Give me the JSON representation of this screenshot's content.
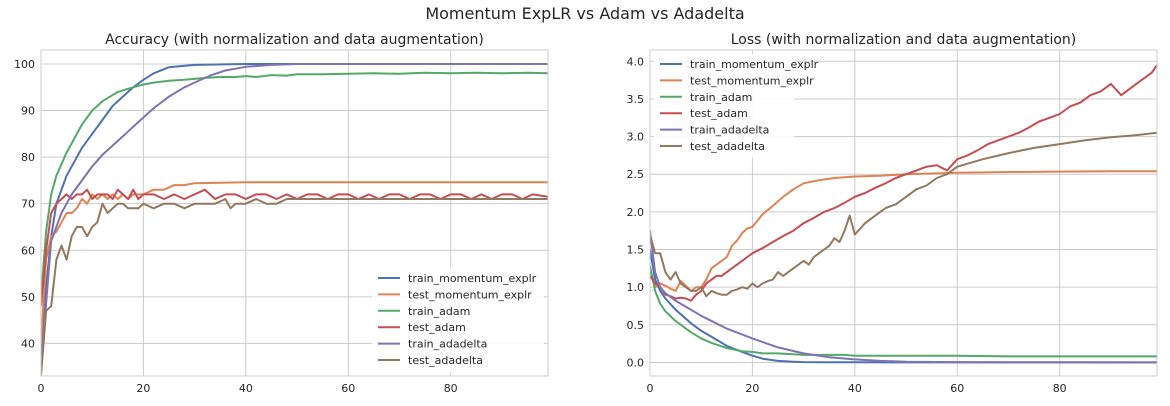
{
  "figure": {
    "suptitle": "Momentum ExpLR vs Adam vs Adadelta"
  },
  "chart_data": [
    {
      "type": "line",
      "title": "Accuracy (with normalization and data augmentation)",
      "xlabel": "",
      "ylabel": "",
      "xlim": [
        0,
        99
      ],
      "ylim": [
        33,
        103
      ],
      "xticks": [
        0,
        20,
        40,
        60,
        80
      ],
      "yticks": [
        40,
        50,
        60,
        70,
        80,
        90,
        100
      ],
      "grid": true,
      "legend_position": "lower-right",
      "series": [
        {
          "name": "train_momentum_explr",
          "color": "#4c72b0",
          "x": [
            0,
            1,
            2,
            3,
            5,
            8,
            10,
            12,
            14,
            16,
            18,
            20,
            22,
            25,
            30,
            40,
            60,
            99
          ],
          "y": [
            36,
            52,
            63,
            70,
            76,
            82,
            85,
            88,
            91,
            93,
            95,
            96.6,
            98,
            99.3,
            99.8,
            100,
            100,
            100
          ]
        },
        {
          "name": "test_momentum_explr",
          "color": "#dd8452",
          "x": [
            0,
            1,
            2,
            3,
            4,
            5,
            6,
            7,
            8,
            9,
            10,
            11,
            12,
            13,
            14,
            15,
            16,
            17,
            18,
            19,
            20,
            22,
            24,
            26,
            28,
            30,
            35,
            40,
            50,
            60,
            80,
            99
          ],
          "y": [
            40,
            58,
            63,
            64,
            66,
            68,
            68,
            69,
            71,
            70,
            72,
            71,
            72,
            71,
            72,
            71,
            72,
            71,
            72,
            72,
            72,
            73,
            73,
            74,
            74,
            74.4,
            74.5,
            74.6,
            74.6,
            74.6,
            74.6,
            74.6
          ]
        },
        {
          "name": "train_adam",
          "color": "#55a868",
          "x": [
            0,
            1,
            2,
            3,
            5,
            8,
            10,
            12,
            15,
            18,
            20,
            22,
            25,
            28,
            30,
            32,
            35,
            38,
            40,
            42,
            45,
            48,
            50,
            55,
            60,
            65,
            70,
            75,
            80,
            85,
            90,
            95,
            99
          ],
          "y": [
            50,
            64,
            72,
            76,
            81,
            87,
            90,
            92,
            94,
            95,
            95.6,
            96,
            96.4,
            96.6,
            96.8,
            97,
            97.2,
            97.2,
            97.4,
            97.2,
            97.6,
            97.5,
            97.8,
            97.8,
            97.9,
            98,
            97.9,
            98.1,
            98,
            98.1,
            98,
            98.1,
            98
          ]
        },
        {
          "name": "test_adam",
          "color": "#c44e52",
          "x": [
            0,
            1,
            2,
            3,
            4,
            5,
            6,
            7,
            8,
            9,
            10,
            11,
            12,
            13,
            14,
            15,
            16,
            17,
            18,
            19,
            20,
            22,
            24,
            26,
            28,
            30,
            32,
            34,
            36,
            38,
            40,
            42,
            44,
            46,
            48,
            50,
            52,
            54,
            56,
            58,
            60,
            62,
            64,
            66,
            68,
            70,
            72,
            74,
            76,
            78,
            80,
            82,
            84,
            86,
            88,
            90,
            92,
            94,
            96,
            99
          ],
          "y": [
            48,
            60,
            68,
            70,
            71,
            72,
            71,
            72,
            72,
            73,
            71,
            72,
            72,
            72,
            71,
            73,
            72,
            71,
            73,
            71,
            72,
            72,
            71,
            72,
            71,
            72,
            73,
            71,
            72,
            72,
            71,
            72,
            72,
            71,
            72,
            71,
            72,
            72,
            71,
            72,
            72,
            71,
            72,
            71,
            72,
            72,
            71,
            72,
            72,
            71,
            72,
            72,
            71,
            72,
            71,
            72,
            72,
            71,
            72,
            71.5
          ]
        },
        {
          "name": "train_adadelta",
          "color": "#8172b3",
          "x": [
            0,
            2,
            4,
            6,
            8,
            10,
            12,
            14,
            16,
            18,
            20,
            22,
            25,
            28,
            30,
            33,
            36,
            40,
            45,
            50,
            60,
            80,
            99
          ],
          "y": [
            35,
            62,
            68,
            72,
            75,
            78,
            80.5,
            82.5,
            84.5,
            86.5,
            88.5,
            90.5,
            93,
            95,
            96,
            97.5,
            98.6,
            99.4,
            99.8,
            100,
            100,
            100,
            100
          ]
        },
        {
          "name": "test_adadelta",
          "color": "#937860",
          "x": [
            0,
            1,
            2,
            3,
            4,
            5,
            6,
            7,
            8,
            9,
            10,
            11,
            12,
            13,
            14,
            15,
            16,
            17,
            18,
            19,
            20,
            22,
            24,
            26,
            28,
            30,
            32,
            34,
            36,
            37,
            38,
            40,
            42,
            44,
            46,
            48,
            50,
            55,
            60,
            65,
            70,
            75,
            80,
            85,
            90,
            95,
            99
          ],
          "y": [
            33,
            47,
            48,
            58,
            61,
            58,
            63,
            65,
            65,
            63,
            65,
            66,
            70,
            68,
            69,
            70,
            70,
            69,
            69,
            69,
            70,
            69,
            70,
            70,
            69,
            70,
            70,
            70,
            71,
            69,
            70,
            70,
            71,
            70,
            70,
            71,
            71,
            71,
            71,
            71,
            71,
            71,
            71,
            71,
            71,
            71,
            71
          ]
        }
      ]
    },
    {
      "type": "line",
      "title": "Loss (with normalization and data augmentation)",
      "xlabel": "",
      "ylabel": "",
      "xlim": [
        0,
        99
      ],
      "ylim": [
        -0.18,
        4.15
      ],
      "xticks": [
        0,
        20,
        40,
        60,
        80
      ],
      "yticks": [
        0.0,
        0.5,
        1.0,
        1.5,
        2.0,
        2.5,
        3.0,
        3.5,
        4.0
      ],
      "grid": true,
      "legend_position": "upper-left",
      "series": [
        {
          "name": "train_momentum_explr",
          "color": "#4c72b0",
          "x": [
            0,
            1,
            2,
            3,
            5,
            8,
            10,
            12,
            15,
            18,
            20,
            22,
            25,
            28,
            30,
            35,
            40,
            60,
            99
          ],
          "y": [
            1.5,
            1.1,
            0.95,
            0.85,
            0.7,
            0.52,
            0.42,
            0.34,
            0.22,
            0.14,
            0.09,
            0.05,
            0.02,
            0.01,
            0.005,
            0.003,
            0.002,
            0.001,
            0.001
          ]
        },
        {
          "name": "test_momentum_explr",
          "color": "#dd8452",
          "x": [
            0,
            1,
            2,
            3,
            4,
            5,
            6,
            7,
            8,
            9,
            10,
            11,
            12,
            13,
            14,
            15,
            16,
            17,
            18,
            19,
            20,
            22,
            24,
            26,
            28,
            30,
            33,
            36,
            40,
            45,
            50,
            55,
            60,
            70,
            80,
            90,
            99
          ],
          "y": [
            1.25,
            1.0,
            1.05,
            1.02,
            0.98,
            0.95,
            1.08,
            1.02,
            0.95,
            1.0,
            1.0,
            1.1,
            1.25,
            1.3,
            1.35,
            1.4,
            1.55,
            1.62,
            1.72,
            1.78,
            1.8,
            1.97,
            2.08,
            2.2,
            2.3,
            2.38,
            2.42,
            2.45,
            2.47,
            2.48,
            2.5,
            2.51,
            2.52,
            2.53,
            2.535,
            2.54,
            2.54
          ]
        },
        {
          "name": "train_adam",
          "color": "#55a868",
          "x": [
            0,
            1,
            2,
            3,
            5,
            8,
            10,
            12,
            15,
            18,
            20,
            22,
            25,
            28,
            30,
            32,
            35,
            38,
            40,
            45,
            50,
            60,
            70,
            80,
            90,
            99
          ],
          "y": [
            1.28,
            0.95,
            0.78,
            0.68,
            0.55,
            0.4,
            0.32,
            0.26,
            0.19,
            0.15,
            0.14,
            0.12,
            0.12,
            0.11,
            0.1,
            0.1,
            0.1,
            0.1,
            0.09,
            0.09,
            0.09,
            0.09,
            0.08,
            0.08,
            0.08,
            0.08
          ]
        },
        {
          "name": "test_adam",
          "color": "#c44e52",
          "x": [
            0,
            1,
            2,
            3,
            4,
            5,
            6,
            7,
            8,
            9,
            10,
            11,
            12,
            13,
            14,
            15,
            16,
            17,
            18,
            19,
            20,
            22,
            24,
            26,
            28,
            30,
            32,
            34,
            36,
            38,
            40,
            42,
            44,
            46,
            48,
            50,
            52,
            54,
            56,
            58,
            60,
            62,
            64,
            66,
            68,
            70,
            72,
            74,
            76,
            78,
            80,
            82,
            84,
            86,
            88,
            90,
            92,
            94,
            96,
            98,
            99
          ],
          "y": [
            1.15,
            1.05,
            1.0,
            0.9,
            0.88,
            0.85,
            0.86,
            0.85,
            0.82,
            0.9,
            0.95,
            1.05,
            1.1,
            1.15,
            1.15,
            1.2,
            1.25,
            1.3,
            1.35,
            1.4,
            1.45,
            1.52,
            1.6,
            1.68,
            1.75,
            1.85,
            1.92,
            2.0,
            2.05,
            2.12,
            2.2,
            2.25,
            2.32,
            2.38,
            2.45,
            2.5,
            2.55,
            2.6,
            2.62,
            2.55,
            2.7,
            2.75,
            2.82,
            2.9,
            2.95,
            3.0,
            3.05,
            3.12,
            3.2,
            3.25,
            3.3,
            3.4,
            3.45,
            3.55,
            3.6,
            3.7,
            3.55,
            3.65,
            3.75,
            3.85,
            3.95
          ]
        },
        {
          "name": "train_adadelta",
          "color": "#8172b3",
          "x": [
            0,
            1,
            2,
            3,
            5,
            8,
            10,
            15,
            20,
            25,
            30,
            35,
            40,
            45,
            50,
            60,
            70,
            80,
            99
          ],
          "y": [
            1.75,
            1.2,
            1.0,
            0.92,
            0.82,
            0.7,
            0.62,
            0.45,
            0.32,
            0.2,
            0.12,
            0.07,
            0.04,
            0.02,
            0.01,
            0.005,
            0.003,
            0.002,
            0.001
          ]
        },
        {
          "name": "test_adadelta",
          "color": "#937860",
          "x": [
            0,
            1,
            2,
            3,
            4,
            5,
            6,
            7,
            8,
            9,
            10,
            11,
            12,
            13,
            14,
            15,
            16,
            17,
            18,
            19,
            20,
            21,
            22,
            23,
            24,
            25,
            26,
            27,
            28,
            29,
            30,
            31,
            32,
            33,
            34,
            35,
            36,
            37,
            38,
            39,
            40,
            42,
            44,
            46,
            48,
            50,
            52,
            54,
            56,
            58,
            60,
            65,
            70,
            75,
            80,
            85,
            90,
            95,
            99
          ],
          "y": [
            1.7,
            1.45,
            1.45,
            1.2,
            1.1,
            1.2,
            1.05,
            1.0,
            0.95,
            0.95,
            1.0,
            0.88,
            0.95,
            0.92,
            0.9,
            0.9,
            0.95,
            0.97,
            1.0,
            0.98,
            1.05,
            1.0,
            1.05,
            1.08,
            1.1,
            1.2,
            1.15,
            1.2,
            1.25,
            1.3,
            1.35,
            1.3,
            1.4,
            1.45,
            1.5,
            1.55,
            1.65,
            1.6,
            1.75,
            1.95,
            1.7,
            1.85,
            1.95,
            2.05,
            2.1,
            2.2,
            2.3,
            2.35,
            2.45,
            2.5,
            2.6,
            2.7,
            2.78,
            2.85,
            2.9,
            2.95,
            2.99,
            3.02,
            3.05
          ]
        }
      ]
    }
  ]
}
